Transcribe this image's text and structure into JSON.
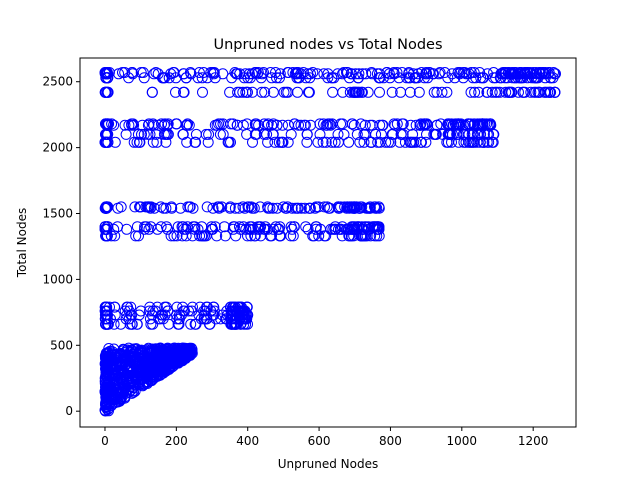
{
  "chart_data": {
    "type": "scatter",
    "title": "Unpruned nodes vs Total Nodes",
    "xlabel": "Unpruned Nodes",
    "ylabel": "Total Nodes",
    "xlim": [
      -70,
      1320
    ],
    "ylim": [
      -120,
      2680
    ],
    "xticks": [
      0,
      200,
      400,
      600,
      800,
      1000,
      1200
    ],
    "yticks": [
      0,
      500,
      1000,
      1500,
      2000,
      2500
    ],
    "grid": false,
    "marker": "open-circle",
    "color": "#0000ff",
    "dense_band": {
      "x_max": 245,
      "y_max": 480,
      "x_min": 0,
      "y_min": 0
    },
    "cluster_bands": [
      {
        "x_range": [
          0,
          400
        ],
        "y_values": [
          660,
          700,
          730,
          760,
          790
        ]
      },
      {
        "x_range": [
          0,
          770
        ],
        "y_values": [
          1330,
          1380,
          1400,
          1540,
          1550
        ]
      },
      {
        "x_range": [
          0,
          1090
        ],
        "y_values": [
          2040,
          2100,
          2170,
          2180
        ]
      },
      {
        "x_range": [
          0,
          1265
        ],
        "y_values": [
          2420,
          2530,
          2560,
          2570
        ]
      }
    ]
  }
}
